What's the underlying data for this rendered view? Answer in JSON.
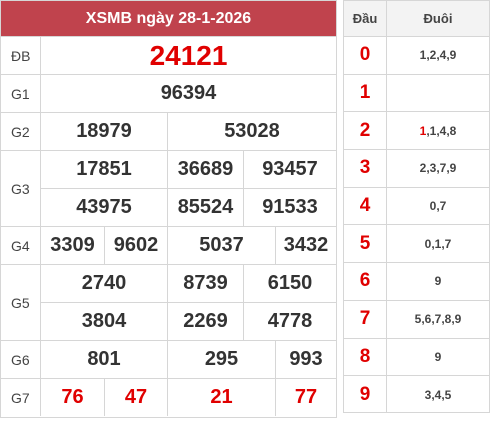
{
  "result": {
    "title": "XSMB ngày 28-1-2026",
    "prizes": {
      "db": {
        "label": "ĐB",
        "value": "24121"
      },
      "g1": {
        "label": "G1",
        "value": "96394"
      },
      "g2": {
        "label": "G2",
        "values": [
          "18979",
          "53028"
        ]
      },
      "g3": {
        "label": "G3",
        "values": [
          "17851",
          "36689",
          "93457",
          "43975",
          "85524",
          "91533"
        ]
      },
      "g4": {
        "label": "G4",
        "values": [
          "3309",
          "9602",
          "5037",
          "3432"
        ]
      },
      "g5": {
        "label": "G5",
        "values": [
          "2740",
          "8739",
          "6150",
          "3804",
          "2269",
          "4778"
        ]
      },
      "g6": {
        "label": "G6",
        "values": [
          "801",
          "295",
          "993"
        ]
      },
      "g7": {
        "label": "G7",
        "values": [
          "76",
          "47",
          "21",
          "77"
        ]
      }
    }
  },
  "loto": {
    "header": {
      "dau": "Đầu",
      "duoi": "Đuôi"
    },
    "rows": [
      {
        "dau": "0",
        "duoi": "1,2,4,9"
      },
      {
        "dau": "1",
        "duoi": ""
      },
      {
        "dau": "2",
        "duoi_highlight": "1",
        "duoi_rest": ",1,4,8"
      },
      {
        "dau": "3",
        "duoi": "2,3,7,9"
      },
      {
        "dau": "4",
        "duoi": "0,7"
      },
      {
        "dau": "5",
        "duoi": "0,1,7"
      },
      {
        "dau": "6",
        "duoi": "9"
      },
      {
        "dau": "7",
        "duoi": "5,6,7,8,9"
      },
      {
        "dau": "8",
        "duoi": "9"
      },
      {
        "dau": "9",
        "duoi": "3,4,5"
      }
    ]
  },
  "colors": {
    "header_bg": "#c0434d",
    "accent_red": "#e00000"
  }
}
